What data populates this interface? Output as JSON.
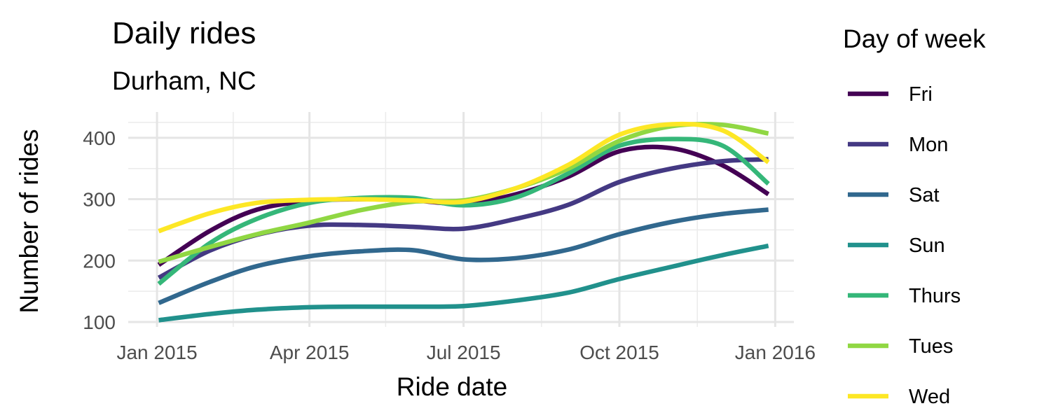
{
  "chart_data": {
    "type": "line",
    "title": "Daily rides",
    "subtitle": "Durham, NC",
    "xlabel": "Ride date",
    "ylabel": "Number of rides",
    "x_ticks": [
      "Jan 2015",
      "Apr 2015",
      "Jul 2015",
      "Oct 2015",
      "Jan 2016"
    ],
    "y_ticks": [
      100,
      200,
      300,
      400
    ],
    "xlim": [
      "2014-12-15",
      "2016-01-12"
    ],
    "ylim": [
      92,
      442
    ],
    "grid": true,
    "legend_title": "Day of week",
    "legend_position": "right",
    "x": [
      "2015-01-02",
      "2015-02-01",
      "2015-03-01",
      "2015-04-01",
      "2015-05-01",
      "2015-06-01",
      "2015-07-01",
      "2015-08-01",
      "2015-09-01",
      "2015-10-01",
      "2015-11-01",
      "2015-12-01",
      "2015-12-28"
    ],
    "series": [
      {
        "name": "Fri",
        "color": "#440154",
        "values": [
          193,
          248,
          283,
          297,
          300,
          298,
          293,
          308,
          337,
          378,
          383,
          355,
          308
        ]
      },
      {
        "name": "Mon",
        "color": "#443983",
        "values": [
          172,
          216,
          242,
          257,
          258,
          255,
          252,
          268,
          291,
          328,
          350,
          362,
          365
        ]
      },
      {
        "name": "Sat",
        "color": "#31688e",
        "values": [
          131,
          165,
          191,
          207,
          215,
          217,
          202,
          204,
          218,
          243,
          263,
          276,
          283
        ]
      },
      {
        "name": "Sun",
        "color": "#21918c",
        "values": [
          103,
          113,
          120,
          124,
          125,
          125,
          126,
          135,
          148,
          170,
          190,
          209,
          224
        ]
      },
      {
        "name": "Thurs",
        "color": "#35b779",
        "values": [
          162,
          228,
          268,
          294,
          302,
          302,
          290,
          303,
          342,
          387,
          398,
          387,
          325
        ]
      },
      {
        "name": "Tues",
        "color": "#90d743",
        "values": [
          198,
          222,
          243,
          262,
          282,
          296,
          298,
          318,
          350,
          395,
          419,
          421,
          407
        ]
      },
      {
        "name": "Wed",
        "color": "#fde725",
        "values": [
          248,
          277,
          294,
          299,
          300,
          298,
          296,
          318,
          356,
          405,
          422,
          412,
          360
        ]
      }
    ]
  }
}
